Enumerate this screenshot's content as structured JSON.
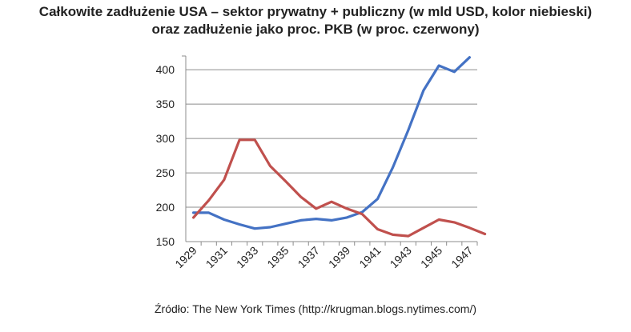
{
  "title_line1": "Całkowite zadłużenie USA – sektor prywatny + publiczny (w mld USD, kolor niebieski)",
  "title_line2": "oraz zadłużenie jako proc. PKB (w proc. czerwony)",
  "source": "Źródło: The New York Times (http://krugman.blogs.nytimes.com/)",
  "chart_data": {
    "type": "line",
    "title": "Całkowite zadłużenie USA – sektor prywatny + publiczny (w mld USD, kolor niebieski) oraz zadłużenie jako proc. PKB (w proc. czerwony)",
    "xlabel": "",
    "ylabel": "",
    "x_ticks": [
      "1929",
      "1931",
      "1933",
      "1935",
      "1937",
      "1939",
      "1941",
      "1943",
      "1945",
      "1947"
    ],
    "y_ticks": [
      "150",
      "200",
      "250",
      "300",
      "350",
      "400"
    ],
    "ylim": [
      150,
      420
    ],
    "xlim": [
      1929,
      1948
    ],
    "grid": "horizontal",
    "series": [
      {
        "color": "#4472c4",
        "x": [
          1929,
          1930,
          1931,
          1932,
          1933,
          1934,
          1935,
          1936,
          1937,
          1938,
          1939,
          1940,
          1941,
          1942,
          1943,
          1944,
          1945,
          1946,
          1947
        ],
        "values": [
          192,
          192,
          182,
          175,
          169,
          171,
          176,
          181,
          183,
          181,
          185,
          193,
          212,
          258,
          312,
          370,
          406,
          397,
          418
        ]
      },
      {
        "color": "#c0504d",
        "x": [
          1929,
          1930,
          1931,
          1932,
          1933,
          1934,
          1935,
          1936,
          1937,
          1938,
          1939,
          1940,
          1941,
          1942,
          1943,
          1944,
          1945,
          1946,
          1947,
          1948
        ],
        "values": [
          185,
          210,
          240,
          298,
          298,
          260,
          238,
          215,
          198,
          208,
          198,
          190,
          168,
          160,
          158,
          170,
          182,
          178,
          170,
          161
        ]
      }
    ]
  }
}
